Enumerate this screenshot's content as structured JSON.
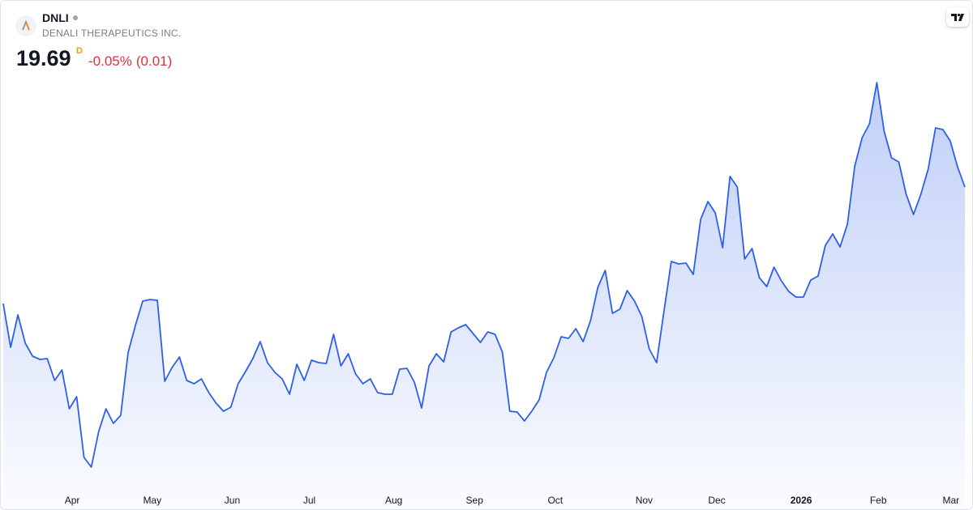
{
  "header": {
    "symbol": "DNLI",
    "name": "DENALI THERAPEUTICS INC.",
    "price": 19.69,
    "interval": "D",
    "change_percent": "-0.05%",
    "change": "(0.01)"
  },
  "chart_data": {
    "type": "area",
    "color": "#2e5fe8",
    "values": [
      16.81,
      15.73,
      16.53,
      15.83,
      15.51,
      15.43,
      15.45,
      14.91,
      15.17,
      14.21,
      14.51,
      13.01,
      12.77,
      13.65,
      14.21,
      13.85,
      14.05,
      15.59,
      16.27,
      16.87,
      16.91,
      16.89,
      14.89,
      15.23,
      15.49,
      14.91,
      14.83,
      14.95,
      14.61,
      14.35,
      14.15,
      14.25,
      14.83,
      15.13,
      15.45,
      15.87,
      15.35,
      15.11,
      14.95,
      14.57,
      15.31,
      14.91,
      15.41,
      15.35,
      15.33,
      16.05,
      15.27,
      15.57,
      15.07,
      14.83,
      14.95,
      14.61,
      14.57,
      14.57,
      15.19,
      15.21,
      14.87,
      14.23,
      15.27,
      15.57,
      15.37,
      16.11,
      16.21,
      16.29,
      16.07,
      15.85,
      16.11,
      16.05,
      15.61,
      14.15,
      14.13,
      13.91,
      14.15,
      14.43,
      15.11,
      15.47,
      15.99,
      15.95,
      16.19,
      15.87,
      16.39,
      17.21,
      17.63,
      16.57,
      16.67,
      17.13,
      16.87,
      16.49,
      15.69,
      15.35,
      16.61,
      17.85,
      17.79,
      17.81,
      17.53,
      18.89,
      19.33,
      19.05,
      18.19,
      19.95,
      19.69,
      17.91,
      18.17,
      17.45,
      17.23,
      17.71,
      17.37,
      17.11,
      16.97,
      16.97,
      17.39,
      17.49,
      18.25,
      18.53,
      18.21,
      18.77,
      20.21,
      20.91,
      21.25,
      22.27,
      21.07,
      20.41,
      20.31,
      19.51,
      19.01,
      19.51,
      20.13,
      21.15,
      21.11,
      20.83,
      20.19,
      19.69
    ],
    "xticks": [
      {
        "value": 9.4,
        "label": "Apr"
      },
      {
        "value": 20.3,
        "label": "May"
      },
      {
        "value": 31.2,
        "label": "Jun"
      },
      {
        "value": 41.7,
        "label": "Jul"
      },
      {
        "value": 53.2,
        "label": "Aug"
      },
      {
        "value": 64.2,
        "label": "Sep"
      },
      {
        "value": 75.2,
        "label": "Oct"
      },
      {
        "value": 87.3,
        "label": "Nov"
      },
      {
        "value": 97.2,
        "label": "Dec"
      },
      {
        "value": 108.7,
        "label": "2026"
      },
      {
        "value": 119.2,
        "label": "Feb"
      },
      {
        "value": 129.1,
        "label": "Mar"
      }
    ]
  }
}
